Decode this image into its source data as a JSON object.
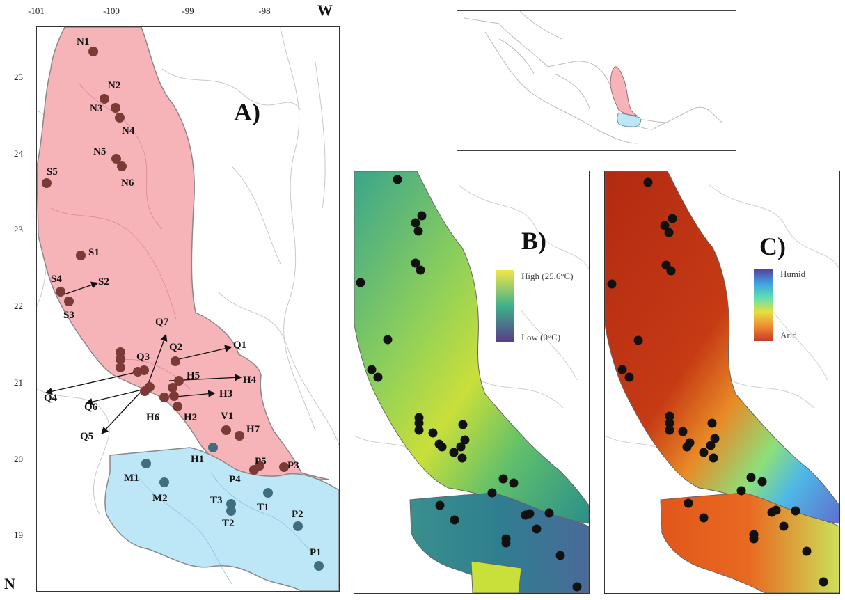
{
  "axes": {
    "x_ticks": [
      "-101",
      "-100",
      "-99",
      "-98"
    ],
    "y_ticks": [
      "25",
      "24",
      "23",
      "22",
      "21",
      "20",
      "19"
    ],
    "west_label": "W",
    "north_label": "N"
  },
  "panels": {
    "a": {
      "title": "A)"
    },
    "b": {
      "title": "B)",
      "legend_high": "High (25.6°C)",
      "legend_low": "Low (0°C)"
    },
    "c": {
      "title": "C)",
      "legend_high": "Humid",
      "legend_low": "Arid"
    }
  },
  "colors": {
    "north_region": "#f6b3b8",
    "south_region": "#bde6f7",
    "north_site": "#7b3a36",
    "south_site": "#3f6f7e",
    "border": "#bfbfbf"
  },
  "sites": {
    "north": [
      {
        "id": "N1"
      },
      {
        "id": "N2"
      },
      {
        "id": "N3"
      },
      {
        "id": "N4"
      },
      {
        "id": "N5"
      },
      {
        "id": "N6"
      },
      {
        "id": "S1"
      },
      {
        "id": "S2"
      },
      {
        "id": "S3"
      },
      {
        "id": "S4"
      },
      {
        "id": "S5"
      },
      {
        "id": "Q1"
      },
      {
        "id": "Q2"
      },
      {
        "id": "Q3"
      },
      {
        "id": "Q4"
      },
      {
        "id": "Q5"
      },
      {
        "id": "Q6"
      },
      {
        "id": "Q7"
      },
      {
        "id": "H2"
      },
      {
        "id": "H3"
      },
      {
        "id": "H4"
      },
      {
        "id": "H5"
      },
      {
        "id": "H6"
      },
      {
        "id": "H7"
      },
      {
        "id": "V1"
      },
      {
        "id": "P3"
      },
      {
        "id": "P4"
      },
      {
        "id": "P5"
      }
    ],
    "south": [
      {
        "id": "H1"
      },
      {
        "id": "M1"
      },
      {
        "id": "M2"
      },
      {
        "id": "T1"
      },
      {
        "id": "T2"
      },
      {
        "id": "T3"
      },
      {
        "id": "P1"
      },
      {
        "id": "P2"
      }
    ]
  }
}
